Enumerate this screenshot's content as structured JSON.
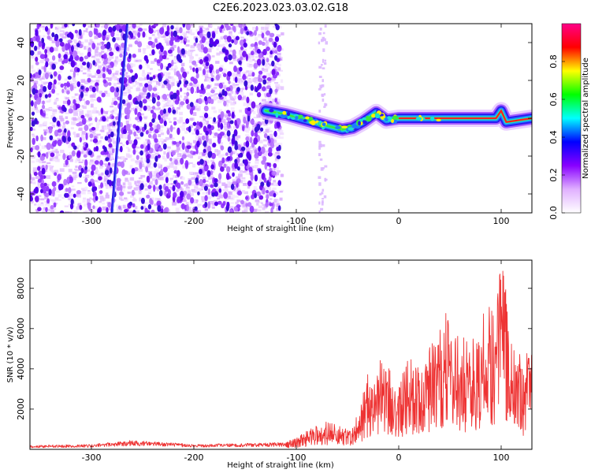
{
  "title": "C2E6.2023.023.03.02.G18",
  "chart_data": [
    {
      "type": "heatmap",
      "xlabel": "Height of straight line (km)",
      "ylabel": "Frequency (Hz)",
      "xlim": [
        -360,
        130
      ],
      "ylim": [
        -50,
        50
      ],
      "xticks": [
        -300,
        -200,
        -100,
        0,
        100
      ],
      "yticks": [
        -40,
        -20,
        0,
        20,
        40
      ],
      "colorbar": {
        "label": "Normalized spectral amplitude",
        "range": [
          0,
          1
        ],
        "ticks": [
          0.0,
          0.2,
          0.4,
          0.6,
          0.8
        ],
        "tick_labels": [
          "0.0",
          "0.2",
          "0.4",
          "0.6",
          "0.8"
        ],
        "colormap": [
          "#ffffff",
          "#e0b0ff",
          "#8800ff",
          "#0000ff",
          "#00ffff",
          "#00ff00",
          "#ffff00",
          "#ff0000",
          "#ff0088"
        ]
      },
      "features": [
        {
          "name": "noise-region",
          "x_range": [
            -360,
            -115
          ],
          "y_range": [
            -50,
            50
          ]
        },
        {
          "name": "carrier-track",
          "points": [
            [
              -130,
              4
            ],
            [
              -110,
              2
            ],
            [
              -90,
              -1
            ],
            [
              -70,
              -4
            ],
            [
              -55,
              -6
            ],
            [
              -45,
              -5
            ],
            [
              -35,
              -2
            ],
            [
              -22,
              3
            ],
            [
              -12,
              -1
            ],
            [
              0,
              0
            ],
            [
              40,
              0
            ],
            [
              80,
              0
            ],
            [
              95,
              0
            ],
            [
              100,
              4
            ],
            [
              105,
              -2
            ],
            [
              130,
              0
            ]
          ]
        },
        {
          "name": "diagonal-streak",
          "points": [
            [
              -280,
              -50
            ],
            [
              -265,
              50
            ]
          ]
        }
      ]
    },
    {
      "type": "line",
      "xlabel": "Height of straight line (km)",
      "ylabel": "SNR (10 * v/v)",
      "xlim": [
        -360,
        130
      ],
      "ylim": [
        0,
        9400
      ],
      "xticks": [
        -300,
        -200,
        -100,
        0,
        100
      ],
      "yticks": [
        2000,
        4000,
        6000,
        8000
      ],
      "series": [
        {
          "color": "#ee3333",
          "envelope": [
            {
              "x": -360,
              "y": 200
            },
            {
              "x": -300,
              "y": 250
            },
            {
              "x": -260,
              "y": 450
            },
            {
              "x": -200,
              "y": 250
            },
            {
              "x": -150,
              "y": 300
            },
            {
              "x": -110,
              "y": 350
            },
            {
              "x": -100,
              "y": 600
            },
            {
              "x": -80,
              "y": 1200
            },
            {
              "x": -70,
              "y": 1400
            },
            {
              "x": -50,
              "y": 1000
            },
            {
              "x": -40,
              "y": 1800
            },
            {
              "x": -30,
              "y": 3800
            },
            {
              "x": -20,
              "y": 4800
            },
            {
              "x": -10,
              "y": 4200
            },
            {
              "x": 0,
              "y": 3800
            },
            {
              "x": 10,
              "y": 4500
            },
            {
              "x": 20,
              "y": 4600
            },
            {
              "x": 30,
              "y": 5200
            },
            {
              "x": 40,
              "y": 6000
            },
            {
              "x": 45,
              "y": 7100
            },
            {
              "x": 55,
              "y": 5800
            },
            {
              "x": 70,
              "y": 5500
            },
            {
              "x": 80,
              "y": 6500
            },
            {
              "x": 90,
              "y": 7500
            },
            {
              "x": 97,
              "y": 9000
            },
            {
              "x": 103,
              "y": 9300
            },
            {
              "x": 108,
              "y": 6000
            },
            {
              "x": 115,
              "y": 5000
            },
            {
              "x": 122,
              "y": 4500
            },
            {
              "x": 130,
              "y": 5500
            }
          ]
        }
      ]
    }
  ]
}
